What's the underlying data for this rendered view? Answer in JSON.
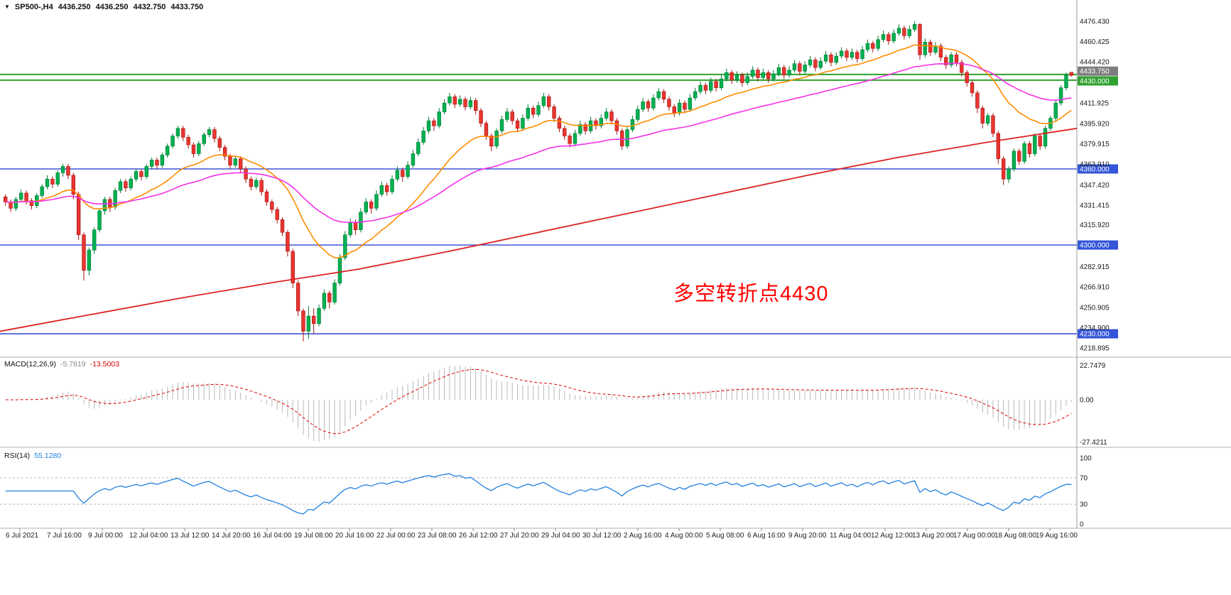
{
  "window": {
    "symbol_info": {
      "collapse_icon": "▼",
      "symbol_period": "SP500-,H4",
      "open": "4436.250",
      "high": "4436.250",
      "low": "4432.750",
      "close": "4433.750"
    }
  },
  "annotation": {
    "text": "多空转折点4430",
    "color": "#ff0000"
  },
  "colors": {
    "up_fill": "#00b050",
    "up_stroke": "#007a33",
    "down_fill": "#e8352e",
    "down_stroke": "#a31212",
    "ma_fast": "#ff8c00",
    "ma_medium": "#f531e8",
    "ma_slow": "#dd2222",
    "level_blue": "#2f43d0",
    "level_green": "#2fa12f",
    "macd_hist": "#b8b8b8",
    "macd_signal": "#dd0000",
    "macd_value_main": "#8a8a8a",
    "macd_value_signal": "#cc0000",
    "rsi_line": "#2080e0",
    "rsi_value": "#2080e0",
    "axis_text": "#1a1a1a",
    "separator": "#b0b0b0",
    "tag_blue_bg": "#3355d8",
    "tag_green_bg": "#2fa12f",
    "tag_current_bg": "#7d7d7d"
  },
  "chart_data": {
    "type": "candlestick",
    "symbol": "SP500-",
    "timeframe": "H4",
    "title": "SP500-,H4",
    "current_bar": {
      "open": 4436.25,
      "high": 4436.25,
      "low": 4432.75,
      "close": 4433.75
    },
    "price_axis": [
      {
        "text": "4476.430",
        "price": 4476.43
      },
      {
        "text": "4460.425",
        "price": 4460.425
      },
      {
        "text": "4444.420",
        "price": 4444.42
      },
      {
        "text": "4411.925",
        "price": 4411.925
      },
      {
        "text": "4395.920",
        "price": 4395.92
      },
      {
        "text": "4379.915",
        "price": 4379.915
      },
      {
        "text": "4363.910",
        "price": 4363.91
      },
      {
        "text": "4347.420",
        "price": 4347.42
      },
      {
        "text": "4331.415",
        "price": 4331.415
      },
      {
        "text": "4315.920",
        "price": 4315.92
      },
      {
        "text": "4282.915",
        "price": 4282.915
      },
      {
        "text": "4266.910",
        "price": 4266.91
      },
      {
        "text": "4250.905",
        "price": 4250.905
      },
      {
        "text": "4234.900",
        "price": 4234.9
      },
      {
        "text": "4218.895",
        "price": 4218.895
      }
    ],
    "level_lines": [
      {
        "price": 4360,
        "label": "4360.000"
      },
      {
        "price": 4300,
        "label": "4300.000"
      },
      {
        "price": 4230,
        "label": "4230.000"
      }
    ],
    "green_lines": [
      {
        "price": 4434.5
      },
      {
        "price": 4430.0,
        "label": "4430.000"
      }
    ],
    "current_price_tag": {
      "price": 4433.75,
      "label": "4433.750"
    },
    "ma_fast_period": 20,
    "ma_medium_period": 50,
    "ma_slow_anchors": [
      4232,
      4245,
      4258,
      4270,
      4281,
      4295,
      4310,
      4325,
      4340,
      4355,
      4369,
      4381,
      4392
    ],
    "time_axis": [
      "6 Jul 2021",
      "7 Jul 16:00",
      "9 Jul 00:00",
      "12 Jul 04:00",
      "13 Jul 12:00",
      "14 Jul 20:00",
      "16 Jul 04:00",
      "19 Jul 08:00",
      "20 Jul 16:00",
      "22 Jul 00:00",
      "23 Jul 08:00",
      "26 Jul 12:00",
      "27 Jul 20:00",
      "29 Jul 04:00",
      "30 Jul 12:00",
      "2 Aug 16:00",
      "4 Aug 00:00",
      "5 Aug 08:00",
      "6 Aug 16:00",
      "9 Aug 20:00",
      "11 Aug 04:00",
      "12 Aug 12:00",
      "13 Aug 20:00",
      "17 Aug 00:00",
      "18 Aug 08:00",
      "19 Aug 16:00"
    ],
    "indicators": {
      "macd": {
        "label": "MACD(12,26,9)",
        "fast": 12,
        "slow": 26,
        "signal": 9,
        "value_main": "-5.7819",
        "value_signal": "-13.5003",
        "axis_labels": [
          "22.7479",
          "0.00",
          "-27.4211"
        ],
        "axis_values": [
          22.7479,
          0,
          -27.4211
        ]
      },
      "rsi": {
        "label": "RSI(14)",
        "period": 14,
        "value": "55.1280",
        "axis_labels": [
          "100",
          "70",
          "30",
          "0"
        ],
        "axis_values": [
          100,
          70,
          30,
          0
        ],
        "levels": [
          70,
          30
        ]
      }
    },
    "candles": [
      [
        4338,
        4340,
        4331,
        4334
      ],
      [
        4334,
        4336,
        4326,
        4329
      ],
      [
        4329,
        4338,
        4327,
        4336
      ],
      [
        4336,
        4344,
        4334,
        4341
      ],
      [
        4341,
        4343,
        4332,
        4335
      ],
      [
        4335,
        4337,
        4328,
        4331
      ],
      [
        4331,
        4341,
        4329,
        4339
      ],
      [
        4339,
        4348,
        4337,
        4346
      ],
      [
        4346,
        4355,
        4344,
        4352
      ],
      [
        4352,
        4354,
        4345,
        4348
      ],
      [
        4348,
        4359,
        4346,
        4357
      ],
      [
        4357,
        4364,
        4354,
        4362
      ],
      [
        4362,
        4364,
        4352,
        4355
      ],
      [
        4355,
        4357,
        4336,
        4340
      ],
      [
        4340,
        4342,
        4304,
        4308
      ],
      [
        4308,
        4310,
        4272,
        4280
      ],
      [
        4280,
        4298,
        4276,
        4296
      ],
      [
        4296,
        4314,
        4293,
        4312
      ],
      [
        4312,
        4329,
        4310,
        4327
      ],
      [
        4327,
        4338,
        4324,
        4336
      ],
      [
        4336,
        4338,
        4326,
        4330
      ],
      [
        4330,
        4345,
        4328,
        4343
      ],
      [
        4343,
        4352,
        4341,
        4350
      ],
      [
        4350,
        4352,
        4342,
        4345
      ],
      [
        4345,
        4354,
        4343,
        4352
      ],
      [
        4352,
        4360,
        4350,
        4358
      ],
      [
        4358,
        4360,
        4351,
        4354
      ],
      [
        4354,
        4364,
        4352,
        4362
      ],
      [
        4362,
        4369,
        4360,
        4367
      ],
      [
        4367,
        4369,
        4360,
        4363
      ],
      [
        4363,
        4373,
        4361,
        4371
      ],
      [
        4371,
        4380,
        4369,
        4378
      ],
      [
        4378,
        4388,
        4376,
        4386
      ],
      [
        4386,
        4394,
        4384,
        4392
      ],
      [
        4392,
        4394,
        4382,
        4385
      ],
      [
        4385,
        4387,
        4376,
        4379
      ],
      [
        4379,
        4381,
        4369,
        4372
      ],
      [
        4372,
        4382,
        4370,
        4380
      ],
      [
        4380,
        4389,
        4378,
        4387
      ],
      [
        4387,
        4393,
        4385,
        4391
      ],
      [
        4391,
        4393,
        4381,
        4384
      ],
      [
        4384,
        4386,
        4374,
        4377
      ],
      [
        4377,
        4379,
        4367,
        4370
      ],
      [
        4370,
        4372,
        4360,
        4363
      ],
      [
        4363,
        4370,
        4361,
        4368
      ],
      [
        4368,
        4370,
        4357,
        4360
      ],
      [
        4360,
        4362,
        4349,
        4352
      ],
      [
        4352,
        4354,
        4343,
        4346
      ],
      [
        4346,
        4353,
        4344,
        4351
      ],
      [
        4351,
        4353,
        4339,
        4342
      ],
      [
        4342,
        4344,
        4331,
        4334
      ],
      [
        4334,
        4336,
        4325,
        4328
      ],
      [
        4328,
        4330,
        4317,
        4320
      ],
      [
        4320,
        4322,
        4307,
        4310
      ],
      [
        4310,
        4312,
        4291,
        4295
      ],
      [
        4295,
        4297,
        4266,
        4270
      ],
      [
        4270,
        4272,
        4244,
        4248
      ],
      [
        4248,
        4250,
        4224,
        4232
      ],
      [
        4232,
        4252,
        4226,
        4244
      ],
      [
        4244,
        4250,
        4230,
        4238
      ],
      [
        4238,
        4253,
        4236,
        4250
      ],
      [
        4250,
        4265,
        4248,
        4262
      ],
      [
        4262,
        4264,
        4250,
        4255
      ],
      [
        4255,
        4273,
        4253,
        4270
      ],
      [
        4270,
        4293,
        4268,
        4290
      ],
      [
        4290,
        4311,
        4288,
        4308
      ],
      [
        4308,
        4321,
        4306,
        4318
      ],
      [
        4318,
        4320,
        4308,
        4312
      ],
      [
        4312,
        4329,
        4310,
        4326
      ],
      [
        4326,
        4337,
        4324,
        4334
      ],
      [
        4334,
        4336,
        4325,
        4329
      ],
      [
        4329,
        4343,
        4327,
        4340
      ],
      [
        4340,
        4350,
        4338,
        4347
      ],
      [
        4347,
        4349,
        4339,
        4342
      ],
      [
        4342,
        4355,
        4340,
        4352
      ],
      [
        4352,
        4362,
        4350,
        4359
      ],
      [
        4359,
        4361,
        4350,
        4354
      ],
      [
        4354,
        4366,
        4352,
        4363
      ],
      [
        4363,
        4375,
        4361,
        4372
      ],
      [
        4372,
        4384,
        4370,
        4381
      ],
      [
        4381,
        4393,
        4379,
        4390
      ],
      [
        4390,
        4401,
        4388,
        4398
      ],
      [
        4398,
        4400,
        4390,
        4394
      ],
      [
        4394,
        4408,
        4392,
        4405
      ],
      [
        4405,
        4415,
        4403,
        4412
      ],
      [
        4412,
        4420,
        4410,
        4417
      ],
      [
        4417,
        4419,
        4408,
        4411
      ],
      [
        4411,
        4418,
        4409,
        4415
      ],
      [
        4415,
        4417,
        4406,
        4409
      ],
      [
        4409,
        4417,
        4407,
        4414
      ],
      [
        4414,
        4416,
        4403,
        4406
      ],
      [
        4406,
        4408,
        4393,
        4396
      ],
      [
        4396,
        4398,
        4383,
        4386
      ],
      [
        4386,
        4388,
        4374,
        4378
      ],
      [
        4378,
        4392,
        4376,
        4390
      ],
      [
        4390,
        4402,
        4388,
        4399
      ],
      [
        4399,
        4408,
        4397,
        4405
      ],
      [
        4405,
        4407,
        4395,
        4398
      ],
      [
        4398,
        4400,
        4389,
        4392
      ],
      [
        4392,
        4403,
        4390,
        4400
      ],
      [
        4400,
        4411,
        4398,
        4408
      ],
      [
        4408,
        4410,
        4400,
        4403
      ],
      [
        4403,
        4413,
        4401,
        4410
      ],
      [
        4410,
        4420,
        4408,
        4417
      ],
      [
        4417,
        4419,
        4406,
        4409
      ],
      [
        4409,
        4411,
        4397,
        4400
      ],
      [
        4400,
        4402,
        4389,
        4392
      ],
      [
        4392,
        4394,
        4383,
        4386
      ],
      [
        4386,
        4388,
        4377,
        4380
      ],
      [
        4380,
        4391,
        4378,
        4388
      ],
      [
        4388,
        4398,
        4386,
        4395
      ],
      [
        4395,
        4397,
        4387,
        4390
      ],
      [
        4390,
        4401,
        4388,
        4398
      ],
      [
        4398,
        4400,
        4391,
        4394
      ],
      [
        4394,
        4403,
        4392,
        4400
      ],
      [
        4400,
        4408,
        4398,
        4405
      ],
      [
        4405,
        4407,
        4395,
        4398
      ],
      [
        4398,
        4400,
        4387,
        4390
      ],
      [
        4390,
        4392,
        4375,
        4378
      ],
      [
        4378,
        4394,
        4376,
        4391
      ],
      [
        4391,
        4402,
        4389,
        4399
      ],
      [
        4399,
        4410,
        4397,
        4407
      ],
      [
        4407,
        4416,
        4405,
        4413
      ],
      [
        4413,
        4415,
        4405,
        4408
      ],
      [
        4408,
        4419,
        4406,
        4416
      ],
      [
        4416,
        4424,
        4414,
        4421
      ],
      [
        4421,
        4423,
        4412,
        4415
      ],
      [
        4415,
        4417,
        4406,
        4409
      ],
      [
        4409,
        4411,
        4401,
        4404
      ],
      [
        4404,
        4415,
        4402,
        4412
      ],
      [
        4412,
        4414,
        4404,
        4407
      ],
      [
        4407,
        4419,
        4405,
        4416
      ],
      [
        4416,
        4424,
        4414,
        4421
      ],
      [
        4421,
        4429,
        4419,
        4426
      ],
      [
        4426,
        4428,
        4419,
        4422
      ],
      [
        4422,
        4432,
        4420,
        4429
      ],
      [
        4429,
        4431,
        4421,
        4424
      ],
      [
        4424,
        4434,
        4422,
        4431
      ],
      [
        4431,
        4439,
        4429,
        4436
      ],
      [
        4436,
        4438,
        4427,
        4430
      ],
      [
        4430,
        4437,
        4428,
        4434
      ],
      [
        4434,
        4436,
        4425,
        4428
      ],
      [
        4428,
        4436,
        4426,
        4433
      ],
      [
        4433,
        4441,
        4431,
        4438
      ],
      [
        4438,
        4440,
        4429,
        4432
      ],
      [
        4432,
        4439,
        4430,
        4436
      ],
      [
        4436,
        4438,
        4428,
        4431
      ],
      [
        4431,
        4438,
        4429,
        4435
      ],
      [
        4435,
        4443,
        4433,
        4440
      ],
      [
        4440,
        4442,
        4431,
        4434
      ],
      [
        4434,
        4441,
        4432,
        4438
      ],
      [
        4438,
        4446,
        4436,
        4443
      ],
      [
        4443,
        4445,
        4434,
        4437
      ],
      [
        4437,
        4445,
        4435,
        4442
      ],
      [
        4442,
        4449,
        4440,
        4446
      ],
      [
        4446,
        4448,
        4437,
        4440
      ],
      [
        4440,
        4448,
        4438,
        4445
      ],
      [
        4445,
        4453,
        4443,
        4450
      ],
      [
        4450,
        4452,
        4441,
        4444
      ],
      [
        4444,
        4452,
        4442,
        4449
      ],
      [
        4449,
        4456,
        4447,
        4453
      ],
      [
        4453,
        4455,
        4445,
        4448
      ],
      [
        4448,
        4455,
        4446,
        4452
      ],
      [
        4452,
        4454,
        4444,
        4447
      ],
      [
        4447,
        4457,
        4445,
        4454
      ],
      [
        4454,
        4462,
        4452,
        4459
      ],
      [
        4459,
        4461,
        4452,
        4455
      ],
      [
        4455,
        4465,
        4453,
        4462
      ],
      [
        4462,
        4469,
        4460,
        4466
      ],
      [
        4466,
        4468,
        4458,
        4461
      ],
      [
        4461,
        4470,
        4459,
        4467
      ],
      [
        4467,
        4474,
        4465,
        4471
      ],
      [
        4471,
        4473,
        4462,
        4465
      ],
      [
        4465,
        4473,
        4463,
        4470
      ],
      [
        4470,
        4476.4,
        4468,
        4474
      ],
      [
        4474,
        4475,
        4446,
        4450
      ],
      [
        4450,
        4463,
        4448,
        4460
      ],
      [
        4460,
        4462,
        4449,
        4452
      ],
      [
        4452,
        4460,
        4450,
        4457
      ],
      [
        4457,
        4459,
        4445,
        4448
      ],
      [
        4448,
        4450,
        4439,
        4442
      ],
      [
        4442,
        4452,
        4440,
        4450
      ],
      [
        4450,
        4452,
        4441,
        4444
      ],
      [
        4444,
        4446,
        4433,
        4436
      ],
      [
        4436,
        4438,
        4425,
        4428
      ],
      [
        4428,
        4430,
        4417,
        4420
      ],
      [
        4420,
        4422,
        4404,
        4408
      ],
      [
        4408,
        4410,
        4392,
        4396
      ],
      [
        4396,
        4404,
        4394,
        4402
      ],
      [
        4402,
        4404,
        4385,
        4388
      ],
      [
        4388,
        4390,
        4364,
        4368
      ],
      [
        4368,
        4370,
        4347.4,
        4352
      ],
      [
        4352,
        4362,
        4349,
        4360
      ],
      [
        4360,
        4376,
        4358,
        4374
      ],
      [
        4374,
        4376,
        4363,
        4366
      ],
      [
        4366,
        4382,
        4364,
        4380
      ],
      [
        4380,
        4382,
        4369,
        4372
      ],
      [
        4372,
        4388,
        4370,
        4386
      ],
      [
        4386,
        4388,
        4375,
        4378
      ],
      [
        4378,
        4394,
        4376,
        4392
      ],
      [
        4392,
        4402,
        4390,
        4400
      ],
      [
        4400,
        4414,
        4398,
        4412
      ],
      [
        4412,
        4426,
        4410,
        4424
      ],
      [
        4424,
        4436,
        4422,
        4434
      ],
      [
        4436.25,
        4436.25,
        4432.75,
        4433.75
      ]
    ]
  }
}
